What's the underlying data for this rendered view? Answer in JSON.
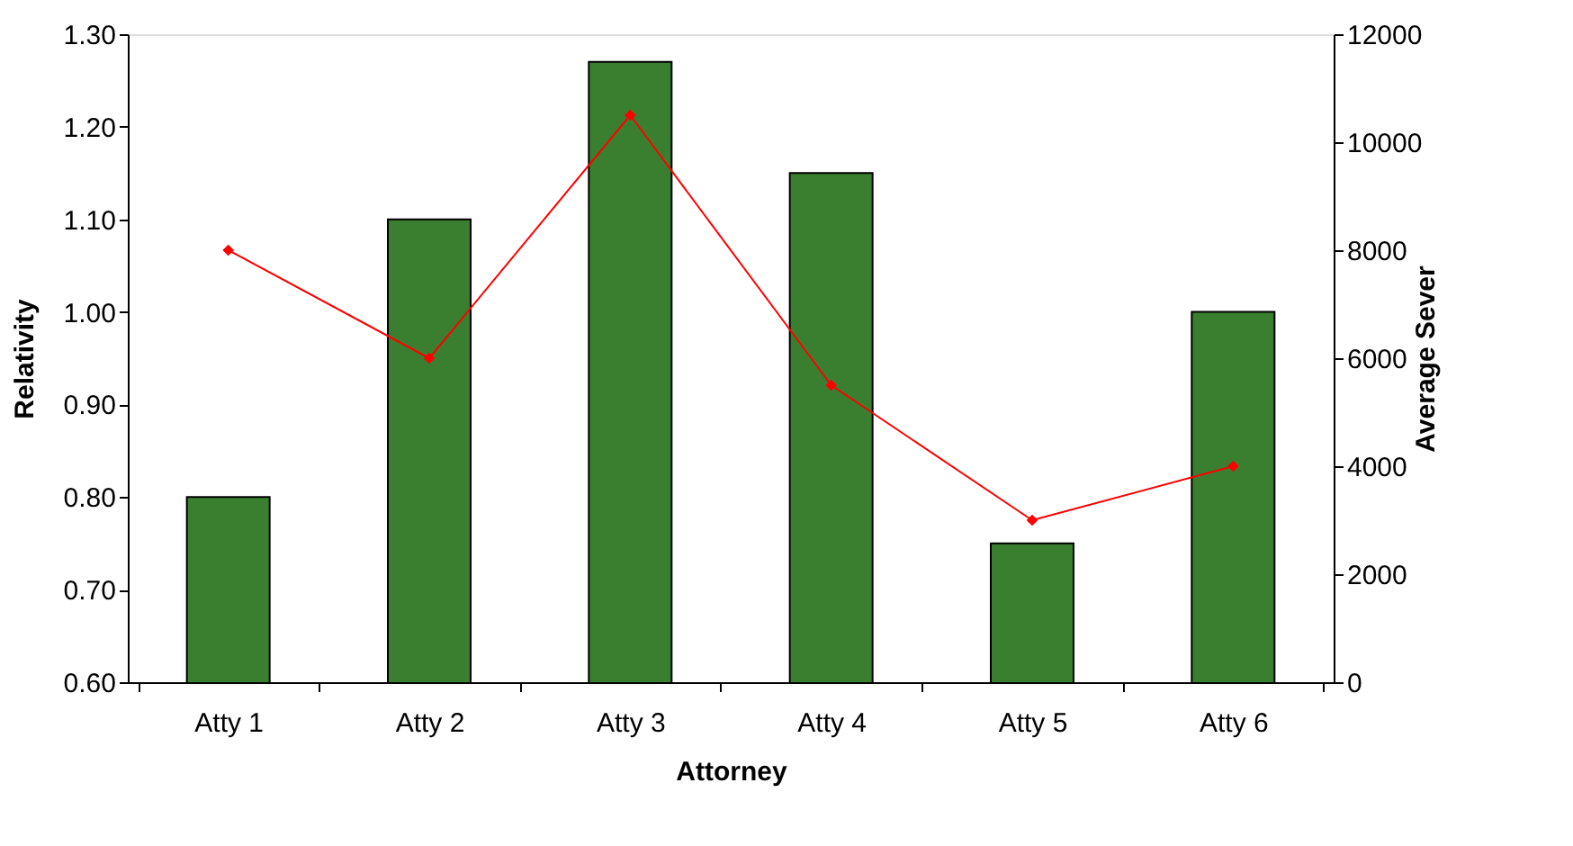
{
  "chart_data": {
    "type": "bar",
    "xlabel": "Attorney",
    "ylabel": "Relativity",
    "y2label": "Average Sever",
    "categories": [
      "Atty 1",
      "Atty 2",
      "Atty 3",
      "Atty 4",
      "Atty 5",
      "Atty 6"
    ],
    "series": [
      {
        "color": "#3a7f2f",
        "values": [
          0.8,
          1.1,
          1.27,
          1.15,
          0.75,
          1.0
        ]
      },
      {
        "type": "line",
        "axis": "y2",
        "color": "#ff0000",
        "marker": "diamond",
        "line_style": "solid",
        "values": [
          8000,
          6000,
          10500,
          5500,
          3000,
          4000
        ]
      }
    ],
    "ylim": [
      0.6,
      1.3
    ],
    "yticks": [
      {
        "value": 0.6,
        "label": "0.60"
      },
      {
        "value": 0.7,
        "label": "0.70"
      },
      {
        "value": 0.8,
        "label": "0.80"
      },
      {
        "value": 0.9,
        "label": "0.90"
      },
      {
        "value": 1.0,
        "label": "1.00"
      },
      {
        "value": 1.1,
        "label": "1.10"
      },
      {
        "value": 1.2,
        "label": "1.20"
      },
      {
        "value": 1.3,
        "label": "1.30"
      }
    ],
    "y2lim": [
      0,
      12000
    ],
    "y2ticks": [
      0,
      2000,
      4000,
      6000,
      8000,
      10000,
      12000
    ],
    "grid": false
  }
}
